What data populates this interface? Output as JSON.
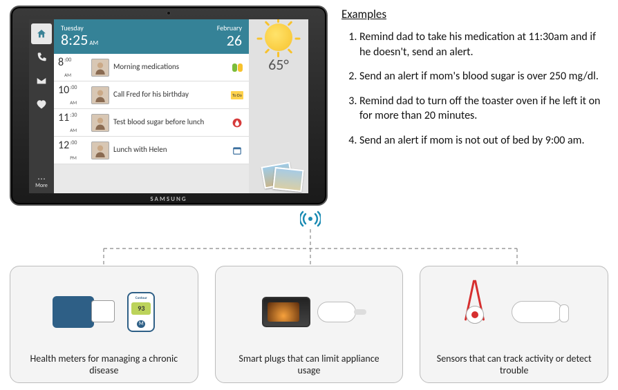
{
  "tablet": {
    "brand": "SAMSUNG",
    "header": {
      "weekday": "Tuesday",
      "time": "8:25",
      "ampm": "AM",
      "month": "February",
      "daynum": "26",
      "bg_color": "#358297"
    },
    "weather": {
      "temp": "65°"
    },
    "sidebar": {
      "home": "home",
      "phone": "phone",
      "mail": "mail",
      "heart": "heart",
      "more": "More"
    },
    "events": [
      {
        "hour": "8",
        "min": ":00",
        "ampm": "AM",
        "label": "Morning medications",
        "icon": "meds"
      },
      {
        "hour": "10",
        "min": ":00",
        "ampm": "AM",
        "label": "Call Fred for his birthday",
        "icon": "todo",
        "icon_text": "To Do"
      },
      {
        "hour": "11",
        "min": ":30",
        "ampm": "AM",
        "label": "Test blood sugar before lunch",
        "icon": "blood"
      },
      {
        "hour": "12",
        "min": ":00",
        "ampm": "PM",
        "label": "Lunch with Helen",
        "icon": "calendar"
      }
    ]
  },
  "examples": {
    "title": "Examples",
    "items": [
      "Remind dad to take his medication at 11:30am and if he doesn't, send an alert.",
      "Send an alert if mom's blood sugar is over 250 mg/dl.",
      "Remind dad to turn off the toaster oven if he left it on for more than 20 minutes.",
      "Send an alert if mom is not out of bed by 9:00 am."
    ]
  },
  "cards": [
    {
      "caption": "Health meters for managing a chronic disease"
    },
    {
      "caption": "Smart plugs that can limit appliance usage"
    },
    {
      "caption": "Sensors that can track activity or detect trouble"
    }
  ],
  "glucose_reading": "93",
  "colors": {
    "accent": "#1a8bb3",
    "card_border": "#bcbcbc",
    "card_bg": "#f4f4f4"
  }
}
